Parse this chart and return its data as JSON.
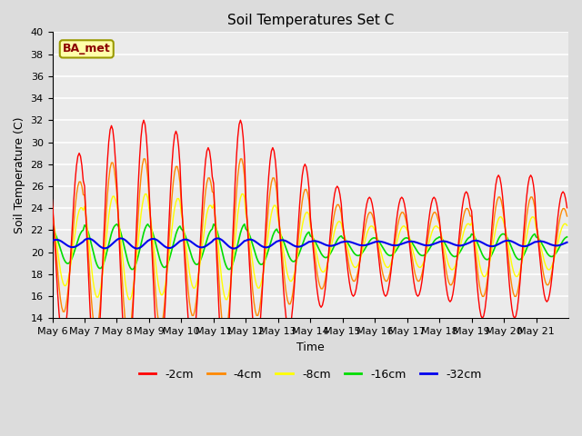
{
  "title": "Soil Temperatures Set C",
  "xlabel": "Time",
  "ylabel": "Soil Temperature (C)",
  "ylim": [
    14,
    40
  ],
  "yticks": [
    14,
    16,
    18,
    20,
    22,
    24,
    26,
    28,
    30,
    32,
    34,
    36,
    38,
    40
  ],
  "colors": {
    "-2cm": "#FF0000",
    "-4cm": "#FF8800",
    "-8cm": "#FFFF00",
    "-16cm": "#00DD00",
    "-32cm": "#0000EE"
  },
  "legend_labels": [
    "-2cm",
    "-4cm",
    "-8cm",
    "-16cm",
    "-32cm"
  ],
  "xtick_labels": [
    "May 6",
    "May 7",
    "May 8",
    "May 9",
    "May 10",
    "May 11",
    "May 12",
    "May 13",
    "May 14",
    "May 15",
    "May 16",
    "May 17",
    "May 18",
    "May 19",
    "May 20",
    "May 21"
  ],
  "annotation_text": "BA_met",
  "fig_bg": "#DCDCDC",
  "plot_bg": "#EBEBEB",
  "figsize": [
    6.4,
    4.8
  ],
  "dpi": 100,
  "n_days": 16,
  "hours_per_day": 24,
  "mean_temp": 20.5,
  "daily_amplitudes_2cm": [
    8.5,
    11.0,
    11.5,
    10.5,
    9.0,
    11.5,
    9.0,
    7.5,
    5.5,
    4.5,
    4.5,
    4.5,
    5.0,
    6.5,
    6.5,
    5.0
  ],
  "daily_means_2cm": [
    20.5,
    20.5,
    20.5,
    20.5,
    20.5,
    20.5,
    20.5,
    20.5,
    20.5,
    20.5,
    20.5,
    20.5,
    20.5,
    20.5,
    20.5,
    20.5
  ],
  "phase_hours": {
    "2cm": 14.0,
    "4cm": 14.5,
    "8cm": 15.5,
    "16cm": 17.5,
    "32cm": 21.0
  },
  "amp_factors": {
    "4cm": 0.7,
    "8cm": 0.42,
    "16cm": 0.18,
    "32cm": 0.04
  }
}
